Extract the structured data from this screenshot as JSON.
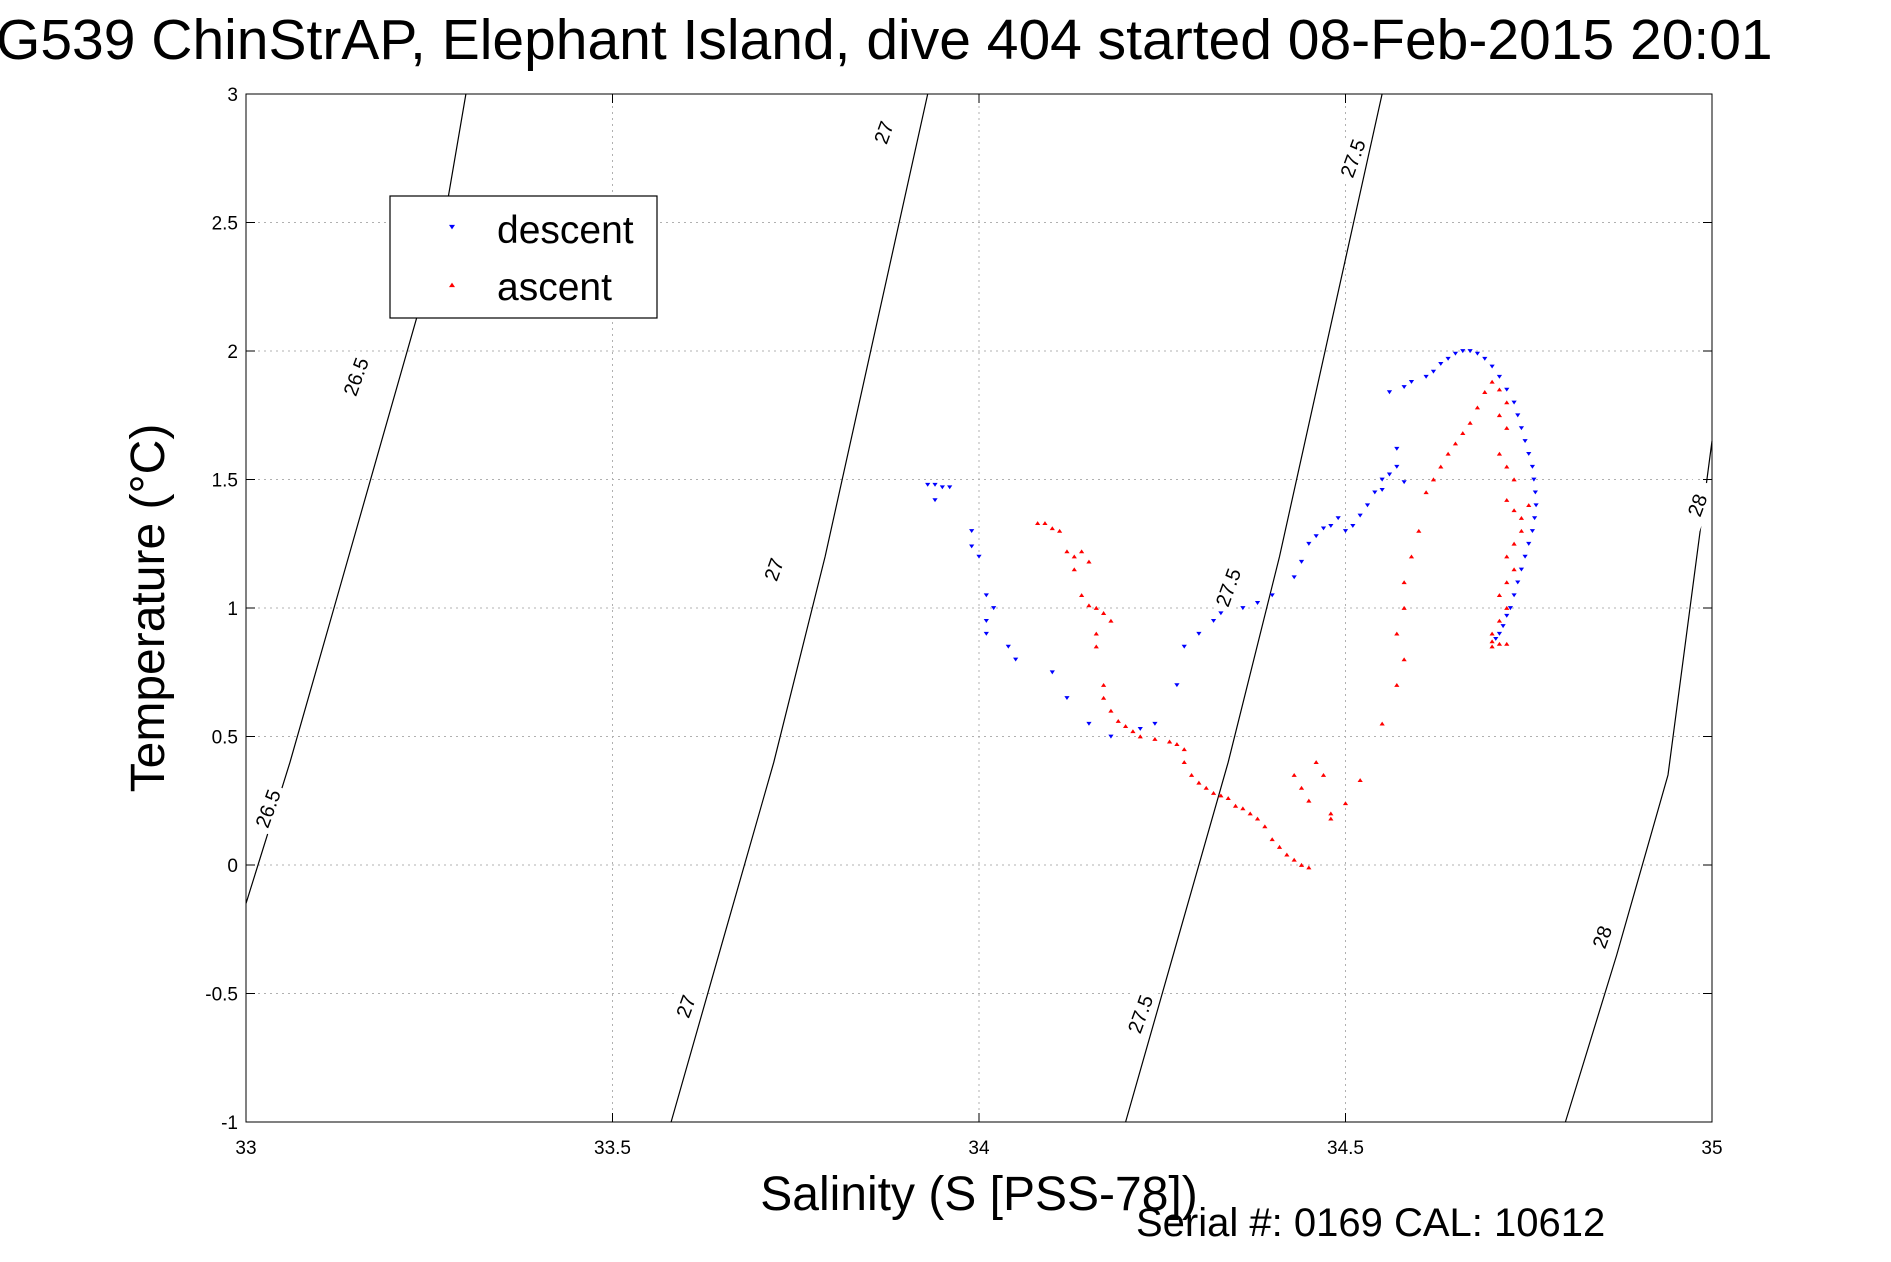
{
  "title": "G539 ChinStrAP, Elephant Island, dive 404 started 08-Feb-2015 20:01",
  "footer": "Serial #: 0169 CAL: 10612",
  "colors": {
    "descent": "#0000ff",
    "ascent": "#ff0000",
    "grid": "#b0b0b0",
    "contour": "#000000"
  },
  "chart_data": {
    "type": "scatter",
    "xlabel": "Salinity (S [PSS-78])",
    "ylabel": "Temperature (°C)",
    "xlim": [
      33,
      35
    ],
    "ylim": [
      -1,
      3
    ],
    "xticks": [
      33,
      33.5,
      34,
      34.5,
      35
    ],
    "yticks": [
      -1,
      -0.5,
      0,
      0.5,
      1,
      1.5,
      2,
      2.5,
      3
    ],
    "xtick_labels": [
      "33",
      "33.5",
      "34",
      "34.5",
      "35"
    ],
    "ytick_labels": [
      "-1",
      "-0.5",
      "0",
      "0.5",
      "1",
      "1.5",
      "2",
      "2.5",
      "3"
    ],
    "grid": true,
    "legend_position": "top-left",
    "series": [
      {
        "name": "descent",
        "marker": "triangle-down",
        "points": [
          [
            33.93,
            1.48
          ],
          [
            33.94,
            1.48
          ],
          [
            33.95,
            1.47
          ],
          [
            33.96,
            1.47
          ],
          [
            33.94,
            1.42
          ],
          [
            33.99,
            1.3
          ],
          [
            33.99,
            1.24
          ],
          [
            34.0,
            1.2
          ],
          [
            34.01,
            1.05
          ],
          [
            34.02,
            1.0
          ],
          [
            34.01,
            0.95
          ],
          [
            34.01,
            0.9
          ],
          [
            34.04,
            0.85
          ],
          [
            34.05,
            0.8
          ],
          [
            34.1,
            0.75
          ],
          [
            34.12,
            0.65
          ],
          [
            34.15,
            0.55
          ],
          [
            34.18,
            0.5
          ],
          [
            34.22,
            0.53
          ],
          [
            34.24,
            0.55
          ],
          [
            34.27,
            0.7
          ],
          [
            34.28,
            0.85
          ],
          [
            34.3,
            0.9
          ],
          [
            34.32,
            0.95
          ],
          [
            34.33,
            0.98
          ],
          [
            34.36,
            1.0
          ],
          [
            34.38,
            1.02
          ],
          [
            34.4,
            1.05
          ],
          [
            34.43,
            1.12
          ],
          [
            34.44,
            1.18
          ],
          [
            34.45,
            1.25
          ],
          [
            34.46,
            1.28
          ],
          [
            34.47,
            1.31
          ],
          [
            34.48,
            1.32
          ],
          [
            34.49,
            1.35
          ],
          [
            34.5,
            1.3
          ],
          [
            34.51,
            1.32
          ],
          [
            34.52,
            1.36
          ],
          [
            34.53,
            1.4
          ],
          [
            34.54,
            1.45
          ],
          [
            34.55,
            1.5
          ],
          [
            34.56,
            1.52
          ],
          [
            34.57,
            1.55
          ],
          [
            34.58,
            1.49
          ],
          [
            34.57,
            1.62
          ],
          [
            34.55,
            1.46
          ],
          [
            34.56,
            1.84
          ],
          [
            34.58,
            1.86
          ],
          [
            34.59,
            1.88
          ],
          [
            34.61,
            1.9
          ],
          [
            34.62,
            1.92
          ],
          [
            34.63,
            1.95
          ],
          [
            34.64,
            1.97
          ],
          [
            34.65,
            1.99
          ],
          [
            34.66,
            2.0
          ],
          [
            34.67,
            2.0
          ],
          [
            34.68,
            1.99
          ],
          [
            34.69,
            1.97
          ],
          [
            34.7,
            1.94
          ],
          [
            34.71,
            1.9
          ],
          [
            34.72,
            1.85
          ],
          [
            34.73,
            1.8
          ],
          [
            34.735,
            1.75
          ],
          [
            34.74,
            1.7
          ],
          [
            34.745,
            1.65
          ],
          [
            34.75,
            1.6
          ],
          [
            34.755,
            1.55
          ],
          [
            34.757,
            1.5
          ],
          [
            34.759,
            1.45
          ],
          [
            34.76,
            1.4
          ],
          [
            34.758,
            1.35
          ],
          [
            34.755,
            1.3
          ],
          [
            34.75,
            1.25
          ],
          [
            34.745,
            1.2
          ],
          [
            34.74,
            1.15
          ],
          [
            34.735,
            1.1
          ],
          [
            34.73,
            1.05
          ],
          [
            34.725,
            1.0
          ],
          [
            34.72,
            0.97
          ],
          [
            34.715,
            0.93
          ],
          [
            34.71,
            0.9
          ],
          [
            34.705,
            0.88
          ]
        ]
      },
      {
        "name": "ascent",
        "marker": "triangle-up",
        "points": [
          [
            34.08,
            1.33
          ],
          [
            34.09,
            1.33
          ],
          [
            34.1,
            1.31
          ],
          [
            34.11,
            1.3
          ],
          [
            34.12,
            1.22
          ],
          [
            34.13,
            1.2
          ],
          [
            34.14,
            1.22
          ],
          [
            34.15,
            1.18
          ],
          [
            34.13,
            1.15
          ],
          [
            34.14,
            1.05
          ],
          [
            34.15,
            1.01
          ],
          [
            34.16,
            1.0
          ],
          [
            34.17,
            0.98
          ],
          [
            34.18,
            0.95
          ],
          [
            34.16,
            0.9
          ],
          [
            34.16,
            0.85
          ],
          [
            34.17,
            0.7
          ],
          [
            34.17,
            0.65
          ],
          [
            34.18,
            0.6
          ],
          [
            34.19,
            0.56
          ],
          [
            34.2,
            0.54
          ],
          [
            34.21,
            0.52
          ],
          [
            34.22,
            0.5
          ],
          [
            34.24,
            0.49
          ],
          [
            34.26,
            0.48
          ],
          [
            34.27,
            0.47
          ],
          [
            34.28,
            0.45
          ],
          [
            34.28,
            0.4
          ],
          [
            34.29,
            0.35
          ],
          [
            34.3,
            0.32
          ],
          [
            34.31,
            0.3
          ],
          [
            34.32,
            0.28
          ],
          [
            34.33,
            0.27
          ],
          [
            34.34,
            0.26
          ],
          [
            34.35,
            0.23
          ],
          [
            34.36,
            0.22
          ],
          [
            34.37,
            0.2
          ],
          [
            34.38,
            0.18
          ],
          [
            34.39,
            0.15
          ],
          [
            34.4,
            0.1
          ],
          [
            34.41,
            0.07
          ],
          [
            34.42,
            0.04
          ],
          [
            34.43,
            0.02
          ],
          [
            34.44,
            0.0
          ],
          [
            34.45,
            -0.01
          ],
          [
            34.43,
            0.35
          ],
          [
            34.44,
            0.3
          ],
          [
            34.45,
            0.25
          ],
          [
            34.46,
            0.4
          ],
          [
            34.47,
            0.35
          ],
          [
            34.48,
            0.2
          ],
          [
            34.48,
            0.18
          ],
          [
            34.5,
            0.24
          ],
          [
            34.52,
            0.33
          ],
          [
            34.55,
            0.55
          ],
          [
            34.57,
            0.7
          ],
          [
            34.58,
            0.8
          ],
          [
            34.57,
            0.9
          ],
          [
            34.58,
            1.0
          ],
          [
            34.58,
            1.1
          ],
          [
            34.59,
            1.2
          ],
          [
            34.6,
            1.3
          ],
          [
            34.61,
            1.45
          ],
          [
            34.62,
            1.5
          ],
          [
            34.63,
            1.55
          ],
          [
            34.64,
            1.6
          ],
          [
            34.65,
            1.64
          ],
          [
            34.66,
            1.68
          ],
          [
            34.67,
            1.72
          ],
          [
            34.68,
            1.78
          ],
          [
            34.69,
            1.84
          ],
          [
            34.7,
            1.88
          ],
          [
            34.71,
            1.85
          ],
          [
            34.72,
            1.8
          ],
          [
            34.71,
            1.75
          ],
          [
            34.72,
            1.7
          ],
          [
            34.71,
            1.6
          ],
          [
            34.72,
            1.55
          ],
          [
            34.73,
            1.5
          ],
          [
            34.72,
            1.42
          ],
          [
            34.73,
            1.38
          ],
          [
            34.74,
            1.35
          ],
          [
            34.75,
            1.4
          ],
          [
            34.74,
            1.3
          ],
          [
            34.73,
            1.25
          ],
          [
            34.72,
            1.2
          ],
          [
            34.73,
            1.15
          ],
          [
            34.72,
            1.1
          ],
          [
            34.71,
            1.05
          ],
          [
            34.72,
            1.0
          ],
          [
            34.71,
            0.95
          ],
          [
            34.7,
            0.9
          ],
          [
            34.7,
            0.87
          ],
          [
            34.71,
            0.86
          ],
          [
            34.72,
            0.86
          ],
          [
            34.7,
            0.85
          ]
        ]
      }
    ],
    "isopycnals": [
      {
        "label": "26.5",
        "points": [
          [
            33.0,
            -0.15
          ],
          [
            33.06,
            0.4
          ],
          [
            33.12,
            1.0
          ],
          [
            33.18,
            1.6
          ],
          [
            33.24,
            2.2
          ],
          [
            33.27,
            2.5
          ],
          [
            33.3,
            3.0
          ]
        ]
      },
      {
        "label": "27",
        "points": [
          [
            33.58,
            -1.0
          ],
          [
            33.65,
            -0.3
          ],
          [
            33.72,
            0.4
          ],
          [
            33.79,
            1.2
          ],
          [
            33.86,
            2.1
          ],
          [
            33.93,
            3.0
          ]
        ]
      },
      {
        "label": "27.5",
        "points": [
          [
            34.2,
            -1.0
          ],
          [
            34.27,
            -0.3
          ],
          [
            34.34,
            0.4
          ],
          [
            34.41,
            1.2
          ],
          [
            34.48,
            2.1
          ],
          [
            34.55,
            3.0
          ]
        ]
      },
      {
        "label": "28",
        "points": [
          [
            34.8,
            -1.0
          ],
          [
            34.87,
            -0.35
          ],
          [
            34.94,
            0.35
          ],
          [
            35.0,
            1.65
          ]
        ]
      }
    ],
    "contour_labels": [
      {
        "text": "26.5",
        "x": 33.15,
        "y": 1.9,
        "angle": -70
      },
      {
        "text": "26.5",
        "x": 33.03,
        "y": 0.22,
        "angle": -70
      },
      {
        "text": "27",
        "x": 33.87,
        "y": 2.85,
        "angle": -70
      },
      {
        "text": "27",
        "x": 33.72,
        "y": 1.15,
        "angle": -70
      },
      {
        "text": "27",
        "x": 33.6,
        "y": -0.55,
        "angle": -70
      },
      {
        "text": "27.5",
        "x": 34.51,
        "y": 2.75,
        "angle": -70
      },
      {
        "text": "27.5",
        "x": 34.34,
        "y": 1.08,
        "angle": -70
      },
      {
        "text": "27.5",
        "x": 34.22,
        "y": -0.58,
        "angle": -70
      },
      {
        "text": "28",
        "x": 34.98,
        "y": 1.4,
        "angle": -70
      },
      {
        "text": "28",
        "x": 34.85,
        "y": -0.28,
        "angle": -70
      }
    ]
  }
}
